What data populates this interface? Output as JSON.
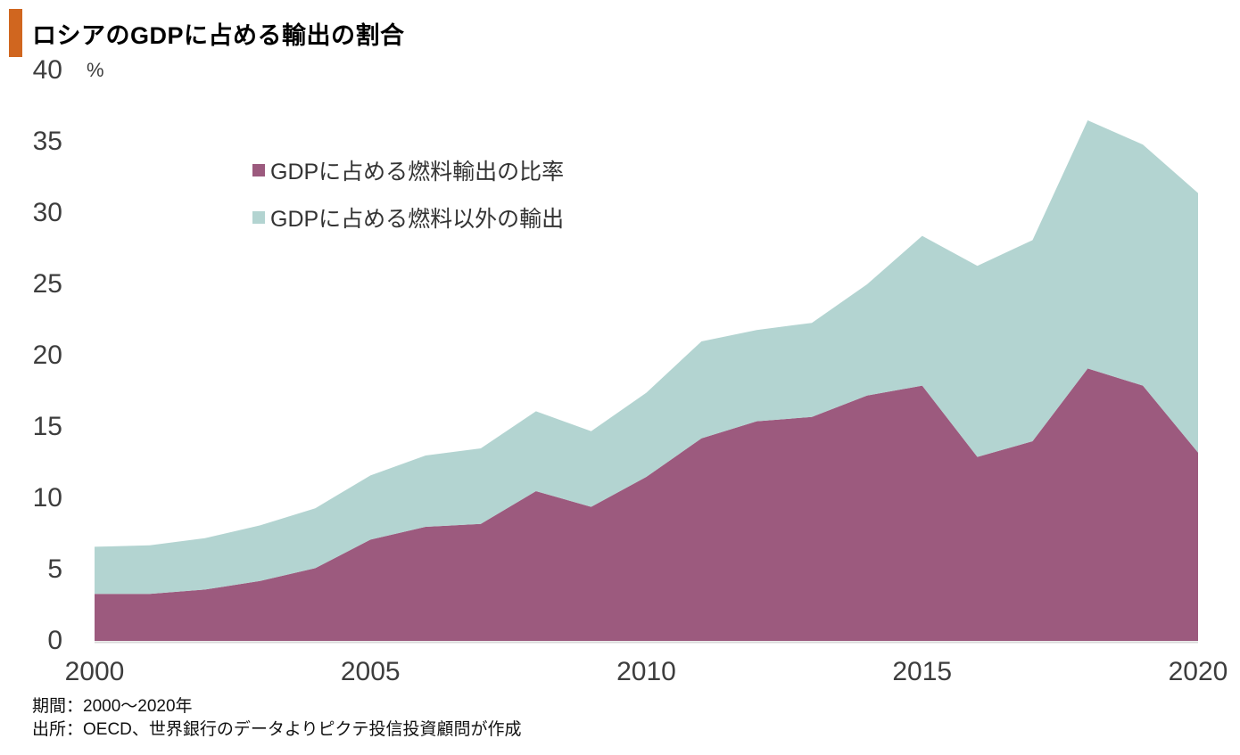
{
  "title": "ロシアのGDPに占める輸出の割合",
  "accent_bar_color": "#d0661f",
  "axis_text_color": "#3d3d3d",
  "axis_line_color": "#d9d9d9",
  "chart_data": {
    "type": "area",
    "stacked": true,
    "title": "ロシアのGDPに占める輸出の割合",
    "unit": "%",
    "grid": false,
    "legend_position": "inside-top-left",
    "ylim": [
      0,
      40
    ],
    "y_ticks": [
      0,
      5,
      10,
      15,
      20,
      25,
      30,
      35,
      40
    ],
    "x": [
      2000,
      2001,
      2002,
      2003,
      2004,
      2005,
      2006,
      2007,
      2008,
      2009,
      2010,
      2011,
      2012,
      2013,
      2014,
      2015,
      2016,
      2017,
      2018,
      2019,
      2020
    ],
    "x_tick_labels": [
      2000,
      2005,
      2010,
      2015,
      2020
    ],
    "series": [
      {
        "name": "GDPに占める燃料輸出の比率",
        "color": "#9c5a7e",
        "values": [
          3.3,
          3.3,
          3.6,
          4.2,
          5.1,
          7.1,
          8.0,
          8.2,
          10.5,
          9.4,
          11.5,
          14.2,
          15.4,
          15.7,
          17.2,
          17.9,
          12.9,
          14.0,
          19.1,
          17.9,
          13.2
        ]
      },
      {
        "name": "GDPに占める燃料以外の輸出",
        "color": "#b3d4d1",
        "values": [
          3.3,
          3.4,
          3.6,
          3.9,
          4.2,
          4.5,
          5.0,
          5.3,
          5.6,
          5.3,
          5.9,
          6.8,
          6.4,
          6.6,
          7.8,
          10.5,
          13.4,
          14.1,
          17.4,
          16.9,
          18.2
        ]
      }
    ],
    "stack_totals": [
      6.6,
      6.7,
      7.2,
      8.1,
      9.3,
      11.6,
      13.0,
      13.5,
      16.1,
      14.7,
      17.4,
      21.0,
      21.8,
      22.3,
      25.0,
      28.4,
      26.3,
      28.1,
      36.5,
      34.8,
      31.4
    ]
  },
  "footer": {
    "period": "期間：2000〜2020年",
    "source": "出所：OECD、世界銀行のデータよりピクテ投信投資顧問が作成"
  }
}
